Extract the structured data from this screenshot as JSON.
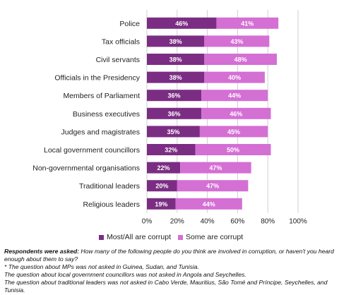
{
  "colors": {
    "most": "#7b2d83",
    "some": "#d46fd4",
    "grid": "#cfcfcf"
  },
  "chart_data": {
    "type": "bar",
    "orientation": "horizontal",
    "stacked": true,
    "categories": [
      "Police",
      "Tax officials",
      "Civil servants",
      "Officials in the Presidency",
      "Members of Parliament",
      "Business executives",
      "Judges and magistrates",
      "Local government councillors",
      "Non-governmental organisations",
      "Traditional leaders",
      "Religious leaders"
    ],
    "series": [
      {
        "name": "Most/All are corrupt",
        "values": [
          46,
          38,
          38,
          38,
          36,
          36,
          35,
          32,
          22,
          20,
          19
        ]
      },
      {
        "name": "Some are corrupt",
        "values": [
          41,
          43,
          48,
          40,
          44,
          46,
          45,
          50,
          47,
          47,
          44
        ]
      }
    ],
    "xlim": [
      0,
      100
    ],
    "xticks": [
      "0%",
      "20%",
      "40%",
      "60%",
      "80%",
      "100%"
    ],
    "grid": true,
    "legend_position": "bottom"
  },
  "legend": {
    "most": "Most/All are corrupt",
    "some": "Some are corrupt"
  },
  "notes": {
    "question_label": "Respondents were asked:",
    "question_text": " How many of the following people do you think are involved in corruption, or haven't you heard enough about them to say?",
    "note_1": "* The question about MPs was not asked in Guinea, Sudan, and Tunisia.",
    "note_2": "The question about local government councillors was not asked in Angola and Seychelles.",
    "note_3": "The question about traditional leaders was not asked in Cabo Verde, Mauritius, São Tomé and Príncipe, Seychelles, and Tunisia."
  }
}
